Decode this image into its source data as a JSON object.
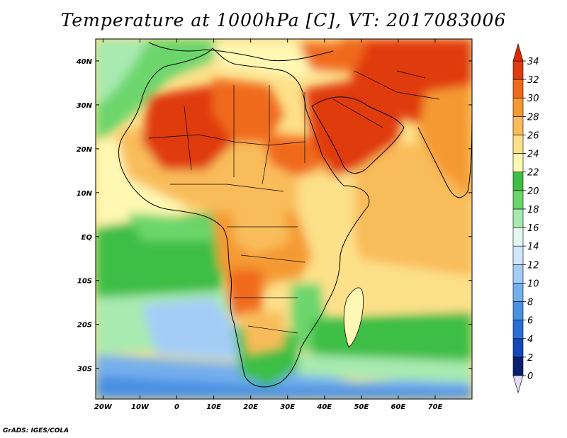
{
  "title": "Temperature at 1000hPa [C], VT: 2017083006",
  "credit": "GrADS: IGES/COLA",
  "map": {
    "lon_range": [
      -22,
      80
    ],
    "lat_range": [
      -37,
      45
    ],
    "lon_ticks": [
      {
        "value": -20,
        "label": "20W"
      },
      {
        "value": -10,
        "label": "10W"
      },
      {
        "value": 0,
        "label": "0"
      },
      {
        "value": 10,
        "label": "10E"
      },
      {
        "value": 20,
        "label": "20E"
      },
      {
        "value": 30,
        "label": "30E"
      },
      {
        "value": 40,
        "label": "40E"
      },
      {
        "value": 50,
        "label": "50E"
      },
      {
        "value": 60,
        "label": "60E"
      },
      {
        "value": 70,
        "label": "70E"
      }
    ],
    "lat_ticks": [
      {
        "value": 40,
        "label": "40N"
      },
      {
        "value": 30,
        "label": "30N"
      },
      {
        "value": 20,
        "label": "20N"
      },
      {
        "value": 10,
        "label": "10N"
      },
      {
        "value": 0,
        "label": "EQ"
      },
      {
        "value": -10,
        "label": "10S"
      },
      {
        "value": -20,
        "label": "20S"
      },
      {
        "value": -30,
        "label": "30S"
      }
    ]
  },
  "colorbar": {
    "levels": [
      0,
      2,
      4,
      6,
      8,
      10,
      12,
      14,
      16,
      18,
      20,
      22,
      24,
      26,
      28,
      30,
      32,
      34
    ],
    "colors": [
      "#0a1f6e",
      "#1448b8",
      "#2a6fd8",
      "#4a90e2",
      "#74afee",
      "#a4cdf6",
      "#cfe8fb",
      "#e4f8f2",
      "#a8eab0",
      "#6cd66c",
      "#3ebe44",
      "#fff8b4",
      "#fde08a",
      "#f9bc5a",
      "#f59a30",
      "#f06a1c",
      "#e03a10"
    ],
    "under_color": "#e2dcf6",
    "over_color": "#e02808"
  },
  "regions": [
    {
      "name": "sahara-west",
      "color": "#e03a10"
    },
    {
      "name": "arabia",
      "color": "#e03a10"
    },
    {
      "name": "iran",
      "color": "#e03a10"
    },
    {
      "name": "south-atlantic-cold",
      "color": "#74afee"
    },
    {
      "name": "southern-ocean",
      "color": "#74afee"
    },
    {
      "name": "gulf-of-guinea",
      "color": "#3ebe44"
    },
    {
      "name": "indian-ocean-south",
      "color": "#3ebe44"
    }
  ]
}
